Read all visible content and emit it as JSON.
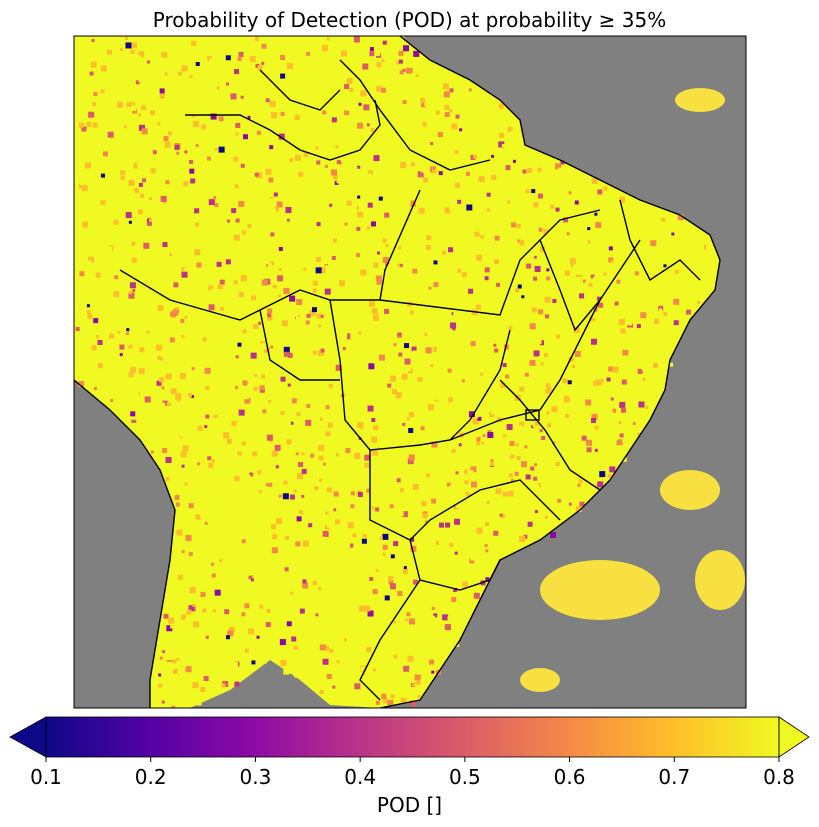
{
  "title": "Probability of Detection (POD) at probability ≥ 35%",
  "colorbar": {
    "label": "POD []",
    "ticks": [
      "0.1",
      "0.2",
      "0.3",
      "0.4",
      "0.5",
      "0.6",
      "0.7",
      "0.8"
    ],
    "min": 0.1,
    "max": 0.8,
    "extend": "both",
    "colormap": "plasma",
    "colors": [
      "#0d0887",
      "#5302a3",
      "#8b0aa5",
      "#b83289",
      "#db5c68",
      "#f48849",
      "#febd2a",
      "#f0f921"
    ]
  },
  "map": {
    "region": "Brazil and surrounding South America",
    "no_data_color": "#808080",
    "field": "POD",
    "boundaries": "country coastlines and Brazilian state borders"
  }
}
